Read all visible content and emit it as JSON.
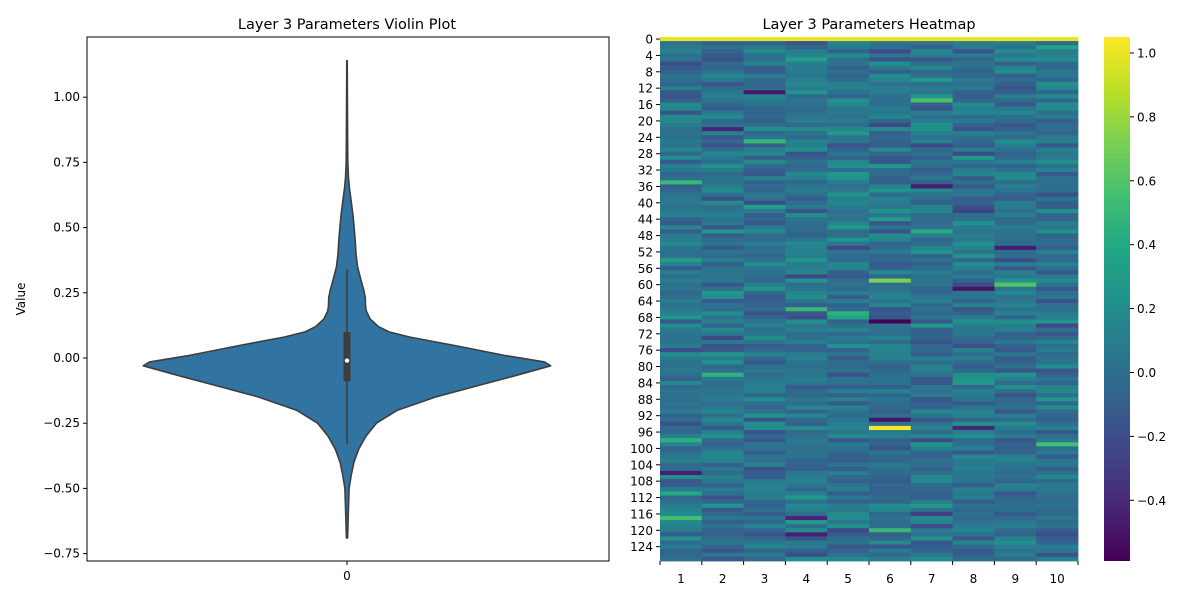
{
  "chart_data": [
    {
      "type": "violin",
      "title": "Layer 3 Parameters Violin Plot",
      "xlabel": "",
      "ylabel": "Value",
      "categories": [
        "0"
      ],
      "ylim": [
        -0.78,
        1.22
      ],
      "yticks": [
        -0.75,
        -0.5,
        -0.25,
        0.0,
        0.25,
        0.5,
        0.75,
        1.0
      ],
      "ytick_labels": [
        "−0.75",
        "−0.50",
        "−0.25",
        "0.00",
        "0.25",
        "0.50",
        "0.75",
        "1.00"
      ],
      "density_profile": {
        "y": [
          -0.69,
          -0.62,
          -0.5,
          -0.45,
          -0.4,
          -0.35,
          -0.3,
          -0.25,
          -0.2,
          -0.15,
          -0.1,
          -0.07,
          -0.03,
          -0.015,
          0.01,
          0.05,
          0.08,
          0.1,
          0.12,
          0.15,
          0.18,
          0.2,
          0.23,
          0.26,
          0.3,
          0.35,
          0.4,
          0.45,
          0.5,
          0.55,
          0.6,
          0.65,
          0.69,
          0.75,
          0.85,
          1.0,
          1.14
        ],
        "half_width": [
          0.003,
          0.005,
          0.01,
          0.02,
          0.033,
          0.055,
          0.09,
          0.14,
          0.24,
          0.42,
          0.65,
          0.79,
          0.97,
          0.94,
          0.75,
          0.5,
          0.3,
          0.2,
          0.15,
          0.11,
          0.092,
          0.088,
          0.087,
          0.08,
          0.066,
          0.05,
          0.043,
          0.039,
          0.034,
          0.028,
          0.02,
          0.012,
          0.007,
          0.004,
          0.003,
          0.002,
          0.001
        ]
      },
      "box": {
        "q1": -0.09,
        "median": -0.01,
        "q3": 0.1,
        "whisker_low": -0.33,
        "whisker_high": 0.34
      },
      "color": "#3274a1",
      "edge_color": "#3d3d3d"
    },
    {
      "type": "heatmap",
      "title": "Layer 3 Parameters Heatmap",
      "columns": [
        "1",
        "2",
        "3",
        "4",
        "5",
        "6",
        "7",
        "8",
        "9",
        "10"
      ],
      "n_rows": 128,
      "row_tick_labels": [
        "0",
        "4",
        "8",
        "12",
        "16",
        "20",
        "24",
        "28",
        "32",
        "36",
        "40",
        "44",
        "48",
        "52",
        "56",
        "60",
        "64",
        "68",
        "72",
        "76",
        "80",
        "84",
        "88",
        "92",
        "96",
        "100",
        "104",
        "108",
        "112",
        "116",
        "120",
        "124"
      ],
      "colormap": "viridis",
      "vmin": -0.59,
      "vmax": 1.05,
      "colorbar_ticks": [
        -0.4,
        -0.2,
        0.0,
        0.2,
        0.4,
        0.6,
        0.8,
        1.0
      ],
      "colorbar_tick_labels": [
        "−0.4",
        "−0.2",
        "0.0",
        "0.2",
        "0.4",
        "0.6",
        "0.8",
        "1.0"
      ],
      "row0_values": [
        1.0,
        1.0,
        1.0,
        1.0,
        1.0,
        1.0,
        1.0,
        1.0,
        1.0,
        1.0
      ],
      "highlights": [
        {
          "row": 59,
          "col": 6,
          "value": 0.72
        },
        {
          "row": 95,
          "col": 6,
          "value": 1.04
        },
        {
          "row": 69,
          "col": 6,
          "value": -0.58
        },
        {
          "row": 22,
          "col": 2,
          "value": -0.42
        },
        {
          "row": 15,
          "col": 7,
          "value": 0.58
        },
        {
          "row": 35,
          "col": 1,
          "value": 0.5
        },
        {
          "row": 98,
          "col": 1,
          "value": 0.45
        },
        {
          "row": 99,
          "col": 10,
          "value": 0.55
        },
        {
          "row": 60,
          "col": 9,
          "value": 0.6
        },
        {
          "row": 66,
          "col": 4,
          "value": 0.5
        },
        {
          "row": 67,
          "col": 5,
          "value": 0.45
        },
        {
          "row": 82,
          "col": 2,
          "value": 0.46
        },
        {
          "row": 111,
          "col": 1,
          "value": 0.4
        },
        {
          "row": 47,
          "col": 7,
          "value": 0.42
        },
        {
          "row": 25,
          "col": 3,
          "value": 0.5
        },
        {
          "row": 117,
          "col": 1,
          "value": 0.55
        },
        {
          "row": 120,
          "col": 6,
          "value": 0.5
        },
        {
          "row": 121,
          "col": 4,
          "value": -0.45
        },
        {
          "row": 13,
          "col": 3,
          "value": -0.48
        },
        {
          "row": 61,
          "col": 8,
          "value": -0.5
        },
        {
          "row": 51,
          "col": 9,
          "value": -0.45
        },
        {
          "row": 93,
          "col": 6,
          "value": -0.5
        },
        {
          "row": 36,
          "col": 7,
          "value": -0.45
        },
        {
          "row": 106,
          "col": 1,
          "value": -0.45
        },
        {
          "row": 95,
          "col": 8,
          "value": -0.4
        },
        {
          "row": 117,
          "col": 4,
          "value": -0.42
        }
      ]
    }
  ]
}
